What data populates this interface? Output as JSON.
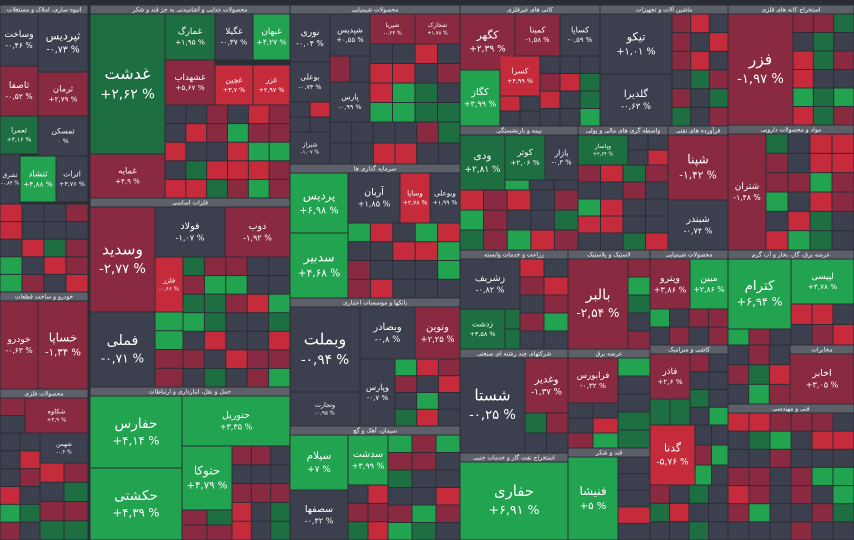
{
  "sectors": [
    {
      "title": "انبوه سازی، املاک و مستغلات",
      "tiles": [
        {
          "name": "وساخت",
          "change": "-۰,۴۶ %",
          "color": "#3c3f4d"
        },
        {
          "name": "ثپردیس",
          "change": "-۰,۷۳ %",
          "color": "#3c3f4d"
        },
        {
          "name": "ثاصفا",
          "change": "-۰,۵۲ %",
          "color": "#8a2a41"
        },
        {
          "name": "ثرمان",
          "change": "+۲,۷۹ %",
          "color": "#8a2a41"
        },
        {
          "name": "ثعمرا",
          "change": "+۴,۱۶ %",
          "color": "#1d6e40"
        },
        {
          "name": "ثمسکن",
          "change": "۰ %",
          "color": "#3c3f4d"
        },
        {
          "name": "ثشرق",
          "change": "-۰,۸۴ %",
          "color": "#3c3f4d"
        },
        {
          "name": "ثتشاد",
          "change": "+۴,۸۸ %",
          "color": "#22a34f"
        },
        {
          "name": "اثرات",
          "change": "+۳,۷۶ %",
          "color": "#3c3f4d"
        }
      ]
    },
    {
      "title": "خودرو و ساخت قطعات",
      "tiles": [
        {
          "name": "خودرو",
          "change": "-۰,۶۳ %",
          "color": "#8a2a41"
        },
        {
          "name": "خساپا",
          "change": "-۱,۳۴ %",
          "color": "#8a2a41"
        }
      ]
    },
    {
      "title": "محصولات فلزی",
      "tiles": [
        {
          "name": "شکاوه",
          "change": "+۳,۹ %",
          "color": "#8a2a41"
        },
        {
          "name": "شهمن",
          "change": "-۰,۴ %",
          "color": "#3c3f4d"
        }
      ]
    },
    {
      "title": "محصولات غذایی و آشامیدنی به جز قند و شکر",
      "tiles": [
        {
          "name": "غدشت",
          "change": "+۲,۶۲ %",
          "color": "#1d6e40"
        },
        {
          "name": "غمایه",
          "change": "+۴,۹ %",
          "color": "#8a2a41"
        },
        {
          "name": "غمارگ",
          "change": "+۱,۹۵ %",
          "color": "#1d6e40"
        },
        {
          "name": "غگیلا",
          "change": "-۰,۳۷ %",
          "color": "#3c3f4d"
        },
        {
          "name": "غبهان",
          "change": "+۴,۲۷ %",
          "color": "#22a34f"
        },
        {
          "name": "غشهداب",
          "change": "+۵,۶۷ %",
          "color": "#8a2a41"
        },
        {
          "name": "غچین",
          "change": "+۳,۷ %",
          "color": "#c62b3c"
        },
        {
          "name": "غزر",
          "change": "+۲,۹۷ %",
          "color": "#c62b3c"
        }
      ]
    },
    {
      "title": "فلزات اساسی",
      "tiles": [
        {
          "name": "وسدید",
          "change": "-۲,۷۷ %",
          "color": "#8a2a41"
        },
        {
          "name": "فولاد",
          "change": "-۱,۰۷ %",
          "color": "#3c3f4d"
        },
        {
          "name": "ذوب",
          "change": "-۱,۹۲ %",
          "color": "#8a2a41"
        },
        {
          "name": "فملی",
          "change": "-۰,۷۱ %",
          "color": "#3c3f4d"
        },
        {
          "name": "فلزر",
          "change": "-۰,۶۶ %",
          "color": "#c62b3c"
        }
      ]
    },
    {
      "title": "حمل و نقل، انبارداری و ارتباطات",
      "tiles": [
        {
          "name": "حفارس",
          "change": "+۴,۱۴ %",
          "color": "#22a34f"
        },
        {
          "name": "حکشتی",
          "change": "+۴,۳۹ %",
          "color": "#22a34f"
        },
        {
          "name": "حتوریل",
          "change": "+۳,۳۵ %",
          "color": "#22a34f"
        },
        {
          "name": "حتوکا",
          "change": "+۴,۷۹ %",
          "color": "#22a34f"
        }
      ]
    },
    {
      "title": "محصولات شیمیایی",
      "tiles": [
        {
          "name": "نوری",
          "change": "-۰,۰۴ %",
          "color": "#3c3f4d"
        },
        {
          "name": "شپدیس",
          "change": "+۰,۵۵ %",
          "color": "#3c3f4d"
        },
        {
          "name": "شپریا",
          "change": "-۰,۲۳ %",
          "color": "#8a2a41"
        },
        {
          "name": "شخارک",
          "change": "+۱,۷۸ %",
          "color": "#8a2a41"
        },
        {
          "name": "بوعلی",
          "change": "-۰,۷۳ %",
          "color": "#3c3f4d"
        },
        {
          "name": "پارس",
          "change": "-۰,۹۹ %",
          "color": "#3c3f4d"
        },
        {
          "name": "شیراز",
          "change": "-۱,۰۷ %",
          "color": "#3c3f4d"
        }
      ]
    },
    {
      "title": "سرمایه گذاری ها",
      "tiles": [
        {
          "name": "پردیس",
          "change": "+۶,۹۸ %",
          "color": "#22a34f"
        },
        {
          "name": "آریان",
          "change": "+۱,۸۵ %",
          "color": "#3c3f4d"
        },
        {
          "name": "وساپا",
          "change": "+۲,۷۸ %",
          "color": "#c62b3c"
        },
        {
          "name": "وبوعلی",
          "change": "+۱,۹۹ %",
          "color": "#3c3f4d"
        },
        {
          "name": "سدبیر",
          "change": "+۴,۶۸ %",
          "color": "#22a34f"
        }
      ]
    },
    {
      "title": "بانکها و موسسات اعتباری",
      "tiles": [
        {
          "name": "وبملت",
          "change": "-۰,۹۴ %",
          "color": "#3c3f4d"
        },
        {
          "name": "وبصادر",
          "change": "-۰,۸ %",
          "color": "#3c3f4d"
        },
        {
          "name": "ونوین",
          "change": "+۲,۲۵ %",
          "color": "#8a2a41"
        },
        {
          "name": "وتجارت",
          "change": "-۰,۹۵ %",
          "color": "#3c3f4d"
        },
        {
          "name": "وپارس",
          "change": "-۰,۷ %",
          "color": "#3c3f4d"
        }
      ]
    },
    {
      "title": "سیمان، آهک و گچ",
      "tiles": [
        {
          "name": "سیلام",
          "change": "+۷ %",
          "color": "#22a34f"
        },
        {
          "name": "سدشت",
          "change": "+۴,۹۹ %",
          "color": "#22a34f"
        },
        {
          "name": "سصفها",
          "change": "-۰,۴۲ %",
          "color": "#3c3f4d"
        }
      ]
    },
    {
      "title": "کانی های غیرفلزی",
      "tiles": [
        {
          "name": "کگهر",
          "change": "+۲,۳۹ %",
          "color": "#8a2a41"
        },
        {
          "name": "کمینا",
          "change": "-۱,۵۸ %",
          "color": "#8a2a41"
        },
        {
          "name": "کساپا",
          "change": "-۰,۵۹ %",
          "color": "#3c3f4d"
        },
        {
          "name": "کگاز",
          "change": "+۴,۹۹ %",
          "color": "#22a34f"
        },
        {
          "name": "کسرا",
          "change": "+۴,۹۹ %",
          "color": "#c62b3c"
        }
      ]
    },
    {
      "title": "بیمه و بازنشستگی",
      "tiles": [
        {
          "name": "ودی",
          "change": "+۲,۸۱ %",
          "color": "#1d6e40"
        },
        {
          "name": "کوثر",
          "change": "+۲,۰۶ %",
          "color": "#1d6e40"
        },
        {
          "name": "بازار",
          "change": "-۰,۳ %",
          "color": "#3c3f4d"
        }
      ]
    },
    {
      "title": "زراعت و خدمات وابسته",
      "tiles": [
        {
          "name": "زشریف",
          "change": "-۰,۸۲ %",
          "color": "#3c3f4d"
        },
        {
          "name": "زدشت",
          "change": "+۳,۵۸ %",
          "color": "#1d6e40"
        }
      ]
    },
    {
      "title": "شرکتهای چند رشته ای صنعتی",
      "tiles": [
        {
          "name": "شستا",
          "change": "-۰,۲۵ %",
          "color": "#3c3f4d"
        },
        {
          "name": "وغدیر",
          "change": "-۱,۳۷ %",
          "color": "#8a2a41"
        }
      ]
    },
    {
      "title": "استخراج نفت گاز و خدمات جنبی",
      "tiles": [
        {
          "name": "حفاری",
          "change": "+۶,۹۱ %",
          "color": "#22a34f"
        }
      ]
    },
    {
      "title": "لاستیک و پلاستیک",
      "tiles": [
        {
          "name": "بالبر",
          "change": "-۲,۵۴ %",
          "color": "#8a2a41"
        }
      ]
    },
    {
      "title": "عرضه برق",
      "tiles": [
        {
          "name": "فرابورس",
          "change": "-۰,۳۲ %",
          "color": "#8a2a41"
        }
      ]
    },
    {
      "title": "قند و شکر",
      "tiles": [
        {
          "name": "فنیشا",
          "change": "+۵ %",
          "color": "#22a34f"
        }
      ]
    },
    {
      "title": "ماشین آلات و تجهیزات",
      "tiles": [
        {
          "name": "تیکو",
          "change": "+۱,۰۱ %",
          "color": "#3c3f4d"
        },
        {
          "name": "گلدیرا",
          "change": "-۰,۶۳ %",
          "color": "#3c3f4d"
        }
      ]
    },
    {
      "title": "واسطه گری های مالی و پولی",
      "tiles": [
        {
          "name": "وپاسار",
          "change": "+۲,۶۴ %",
          "color": "#1d6e40"
        }
      ]
    },
    {
      "title": "فرآورده های نفتی",
      "tiles": [
        {
          "name": "شپنا",
          "change": "-۱,۴۲ %",
          "color": "#8a2a41"
        },
        {
          "name": "شبندر",
          "change": "-۰,۷۴ %",
          "color": "#3c3f4d"
        }
      ]
    },
    {
      "title": "محصولات شیمیایی",
      "tiles": [
        {
          "name": "وپترو",
          "change": "+۳,۸۶ %",
          "color": "#8a2a41"
        },
        {
          "name": "مبین",
          "change": "+۲,۸۶ %",
          "color": "#22a34f"
        }
      ]
    },
    {
      "title": "کاشی و سرامیک",
      "tiles": [
        {
          "name": "فاذر",
          "change": "+۲,۶ %",
          "color": "#8a2a41"
        },
        {
          "name": "گدنا",
          "change": "-۵,۷۶ %",
          "color": "#c62b3c"
        }
      ]
    },
    {
      "title": "استخراج کانه های فلزی",
      "tiles": [
        {
          "name": "فزر",
          "change": "-۱,۹۷ %",
          "color": "#8a2a41"
        }
      ]
    },
    {
      "title": "مواد و محصولات دارویی",
      "tiles": [
        {
          "name": "شتران",
          "change": "-۱,۴۸ %",
          "color": "#8a2a41"
        }
      ]
    },
    {
      "title": "عرضه برق، گاز، بخار و آب گرم",
      "tiles": [
        {
          "name": "کترام",
          "change": "+۶,۹۴ %",
          "color": "#22a34f"
        },
        {
          "name": "لپیسی",
          "change": "+۴,۷۸ %",
          "color": "#22a34f"
        }
      ]
    },
    {
      "title": "مخابرات",
      "tiles": [
        {
          "name": "اخابر",
          "change": "+۳,۰۵ %",
          "color": "#8a2a41"
        }
      ]
    },
    {
      "title": "فنی و مهندسی",
      "tiles": []
    }
  ]
}
